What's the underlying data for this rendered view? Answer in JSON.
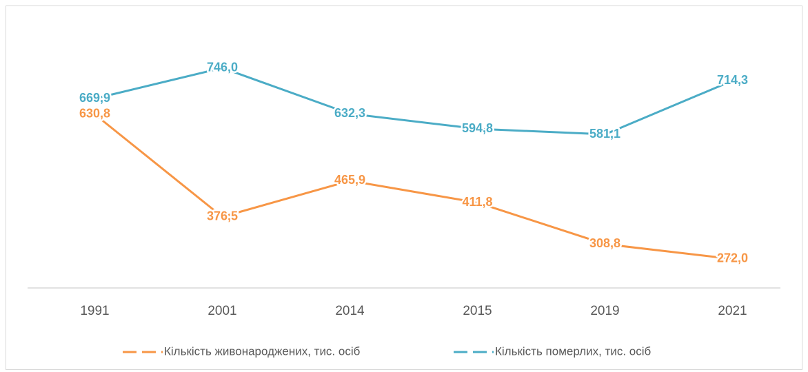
{
  "chart_data": {
    "type": "line",
    "categories": [
      "1991",
      "2001",
      "2014",
      "2015",
      "2019",
      "2021"
    ],
    "series": [
      {
        "name": "Кількість живонароджених, тис. осіб",
        "color": "#f79646",
        "values": [
          630.8,
          376.5,
          465.9,
          411.8,
          308.8,
          272.0
        ],
        "value_labels": [
          "630,8",
          "376,5",
          "465,9",
          "411,8",
          "308,8",
          "272,0"
        ]
      },
      {
        "name": "Кількість померлих, тис. осіб",
        "color": "#4bacc6",
        "values": [
          669.9,
          746.0,
          632.3,
          594.8,
          581.1,
          714.3
        ],
        "value_labels": [
          "669,9",
          "746,0",
          "632,3",
          "594,8",
          "581,1",
          "714,3"
        ]
      }
    ],
    "ylim": [
      200,
      800
    ],
    "legend": "bottom"
  }
}
